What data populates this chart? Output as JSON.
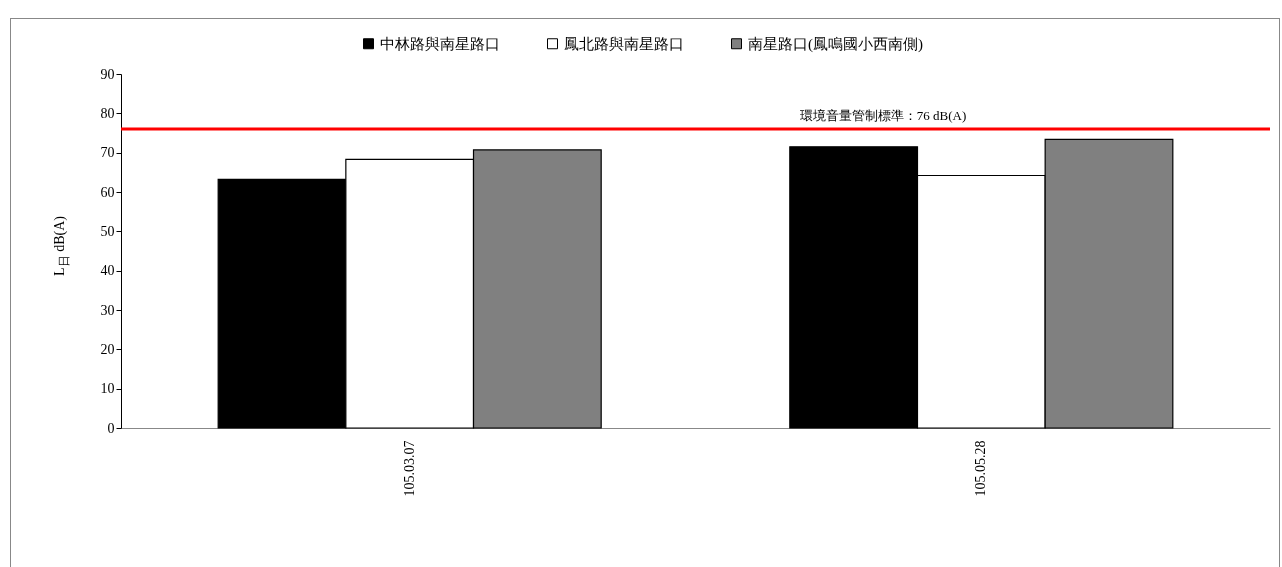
{
  "chart_data": {
    "type": "bar",
    "ylabel": "L$_{日}$ dB(A)",
    "categories": [
      "105.03.07",
      "105.05.28"
    ],
    "series": [
      {
        "name": "中林路與南星路口",
        "color": "#000000",
        "values": [
          63.2,
          71.5
        ]
      },
      {
        "name": "鳳北路與南星路口",
        "color": "#ffffff",
        "values": [
          68.3,
          64.2
        ]
      },
      {
        "name": "南星路口(鳳鳴國小西南側)",
        "color": "#808080",
        "values": [
          70.7,
          73.4
        ]
      }
    ],
    "ylim": [
      0,
      90
    ],
    "yticks": [
      0,
      10,
      20,
      30,
      40,
      50,
      60,
      70,
      80,
      90
    ],
    "grid": false,
    "legend": "top",
    "ref_lines": [
      {
        "axis": "y",
        "value": 76,
        "label": "環境音量管制標準：76 dB(A)",
        "color": "#ff0000"
      }
    ]
  }
}
